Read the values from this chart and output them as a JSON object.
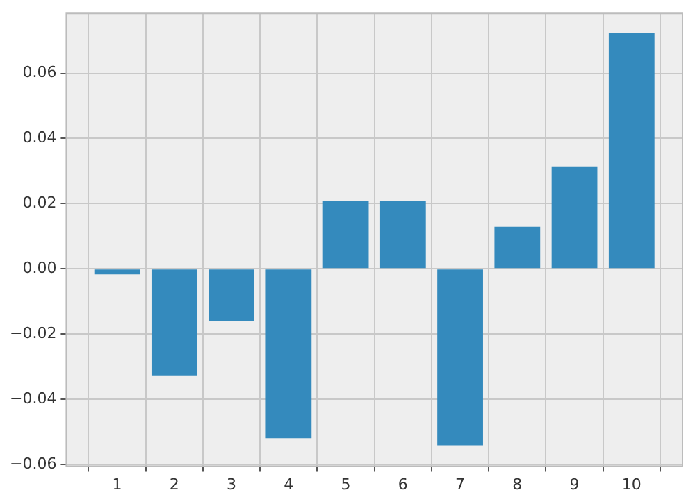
{
  "chart_data": {
    "type": "bar",
    "x": [
      1,
      2,
      3,
      4,
      5,
      6,
      7,
      8,
      9,
      10
    ],
    "values": [
      -0.0017,
      -0.0327,
      -0.016,
      -0.052,
      0.0207,
      0.0207,
      -0.0542,
      0.0129,
      0.0314,
      0.0725
    ],
    "color": "#348abd",
    "xlim": [
      0.11,
      10.89
    ],
    "xticks": [
      1,
      2,
      3,
      4,
      5,
      6,
      7,
      8,
      9,
      10
    ],
    "ylim": [
      -0.0606,
      0.0784
    ],
    "yticks": [
      {
        "value": -0.06,
        "label": "−0.06"
      },
      {
        "value": -0.04,
        "label": "−0.04"
      },
      {
        "value": -0.02,
        "label": "−0.02"
      },
      {
        "value": 0,
        "label": "0.00"
      },
      {
        "value": 0.02,
        "label": "0.02"
      },
      {
        "value": 0.04,
        "label": "0.04"
      },
      {
        "value": 0.06,
        "label": "0.06"
      }
    ],
    "grid": true
  }
}
